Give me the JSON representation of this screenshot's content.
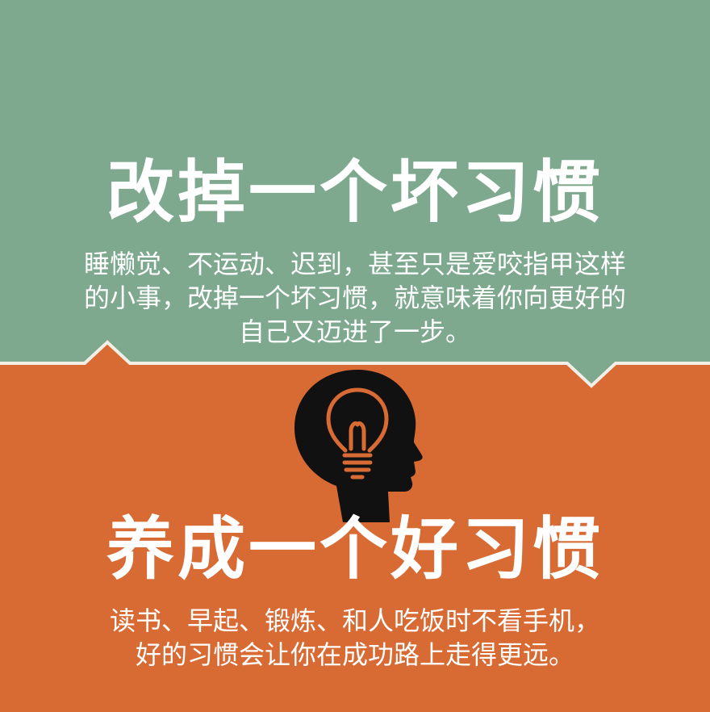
{
  "colors": {
    "top_background": "#7ea98f",
    "bottom_background": "#d86a34",
    "divider": "#f4efe6",
    "text": "#ffffff",
    "icon_fill": "#111111",
    "icon_accent": "#d86a34"
  },
  "top_section": {
    "headline": "改掉一个坏习惯",
    "body_lines": [
      "睡懒觉、不运动、迟到，甚至只是爱咬指甲这样",
      "的小事，改掉一个坏习惯，就意味着你向更好的",
      "自己又迈进了一步。"
    ]
  },
  "icon": {
    "name": "head-with-lightbulb-icon"
  },
  "bottom_section": {
    "headline": "养成一个好习惯",
    "body_lines": [
      "读书、早起、锻炼、和人吃饭时不看手机，",
      "好的习惯会让你在成功路上走得更远。"
    ]
  }
}
